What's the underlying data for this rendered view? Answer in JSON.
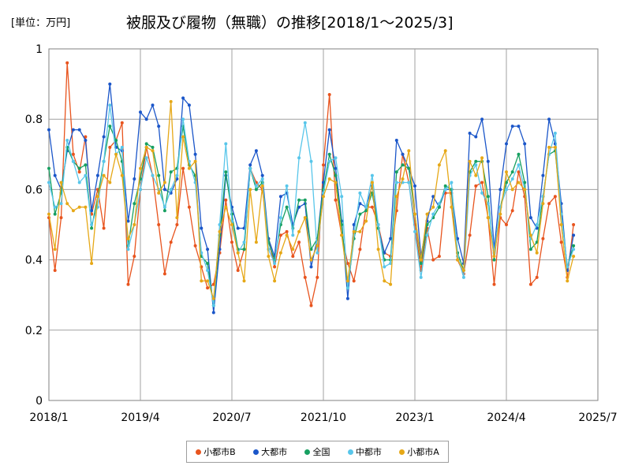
{
  "unit_label": "[単位：万円]",
  "chart_data": {
    "type": "line",
    "title": "被服及び履物（無職）の推移[2018/1～2025/3]",
    "ylim": [
      0,
      1
    ],
    "yticks": [
      "0",
      "0.2",
      "0.4",
      "0.6",
      "0.8",
      "1"
    ],
    "xticks": [
      "2018/1",
      "2019/4",
      "2020/7",
      "2021/10",
      "2023/1",
      "2024/4",
      "2025/7"
    ],
    "grid": true,
    "legend_position": "bottom",
    "series": [
      {
        "name": "小都市B",
        "color": "#e8541e",
        "values": [
          0.52,
          0.37,
          0.52,
          0.96,
          0.7,
          0.65,
          0.75,
          0.53,
          0.6,
          0.49,
          0.72,
          0.74,
          0.79,
          0.33,
          0.41,
          0.6,
          0.72,
          0.64,
          0.5,
          0.36,
          0.45,
          0.5,
          0.66,
          0.55,
          0.44,
          0.38,
          0.32,
          0.33,
          0.42,
          0.57,
          0.45,
          0.37,
          0.43,
          0.66,
          0.62,
          0.6,
          0.46,
          0.38,
          0.47,
          0.48,
          0.41,
          0.45,
          0.35,
          0.27,
          0.35,
          0.67,
          0.87,
          0.57,
          0.47,
          0.39,
          0.34,
          0.43,
          0.55,
          0.55,
          0.5,
          0.42,
          0.41,
          0.54,
          0.7,
          0.62,
          0.5,
          0.37,
          0.49,
          0.4,
          0.41,
          0.59,
          0.59,
          0.4,
          0.36,
          0.47,
          0.61,
          0.62,
          0.52,
          0.33,
          0.52,
          0.5,
          0.54,
          0.65,
          0.58,
          0.33,
          0.35,
          0.46,
          0.56,
          0.58,
          0.45,
          0.35,
          0.5
        ]
      },
      {
        "name": "大都市",
        "color": "#1b56c9",
        "values": [
          0.77,
          0.64,
          0.6,
          0.71,
          0.77,
          0.77,
          0.74,
          0.54,
          0.64,
          0.75,
          0.9,
          0.72,
          0.71,
          0.51,
          0.63,
          0.82,
          0.8,
          0.84,
          0.78,
          0.6,
          0.59,
          0.63,
          0.86,
          0.84,
          0.7,
          0.49,
          0.43,
          0.25,
          0.43,
          0.64,
          0.55,
          0.49,
          0.49,
          0.67,
          0.71,
          0.64,
          0.46,
          0.41,
          0.58,
          0.59,
          0.5,
          0.55,
          0.56,
          0.38,
          0.46,
          0.62,
          0.77,
          0.66,
          0.51,
          0.29,
          0.5,
          0.56,
          0.55,
          0.61,
          0.49,
          0.42,
          0.46,
          0.74,
          0.7,
          0.66,
          0.61,
          0.41,
          0.51,
          0.58,
          0.55,
          0.6,
          0.6,
          0.46,
          0.39,
          0.76,
          0.75,
          0.8,
          0.68,
          0.43,
          0.6,
          0.73,
          0.78,
          0.78,
          0.73,
          0.52,
          0.49,
          0.64,
          0.8,
          0.73,
          0.56,
          0.37,
          0.47
        ]
      },
      {
        "name": "全国",
        "color": "#17a061",
        "values": [
          0.66,
          0.53,
          0.59,
          0.72,
          0.68,
          0.66,
          0.67,
          0.49,
          0.58,
          0.68,
          0.78,
          0.74,
          0.68,
          0.44,
          0.56,
          0.63,
          0.73,
          0.72,
          0.64,
          0.54,
          0.65,
          0.66,
          0.78,
          0.67,
          0.64,
          0.41,
          0.39,
          0.27,
          0.47,
          0.65,
          0.53,
          0.43,
          0.43,
          0.66,
          0.6,
          0.62,
          0.45,
          0.4,
          0.5,
          0.55,
          0.49,
          0.57,
          0.57,
          0.43,
          0.46,
          0.6,
          0.7,
          0.64,
          0.5,
          0.32,
          0.46,
          0.53,
          0.54,
          0.59,
          0.49,
          0.4,
          0.4,
          0.65,
          0.67,
          0.66,
          0.53,
          0.39,
          0.5,
          0.52,
          0.55,
          0.61,
          0.6,
          0.42,
          0.37,
          0.65,
          0.68,
          0.68,
          0.58,
          0.4,
          0.55,
          0.62,
          0.65,
          0.7,
          0.62,
          0.43,
          0.45,
          0.58,
          0.7,
          0.71,
          0.53,
          0.38,
          0.44
        ]
      },
      {
        "name": "中都市",
        "color": "#58c6ea",
        "values": [
          0.62,
          0.55,
          0.56,
          0.74,
          0.68,
          0.62,
          0.64,
          0.5,
          0.55,
          0.68,
          0.84,
          0.7,
          0.72,
          0.43,
          0.5,
          0.6,
          0.69,
          0.64,
          0.6,
          0.55,
          0.6,
          0.64,
          0.8,
          0.68,
          0.62,
          0.42,
          0.37,
          0.27,
          0.5,
          0.73,
          0.51,
          0.42,
          0.45,
          0.66,
          0.61,
          0.63,
          0.43,
          0.39,
          0.52,
          0.61,
          0.47,
          0.69,
          0.79,
          0.68,
          0.42,
          0.59,
          0.68,
          0.69,
          0.58,
          0.32,
          0.47,
          0.59,
          0.55,
          0.64,
          0.5,
          0.38,
          0.39,
          0.62,
          0.62,
          0.62,
          0.48,
          0.35,
          0.47,
          0.53,
          0.56,
          0.6,
          0.62,
          0.41,
          0.35,
          0.64,
          0.67,
          0.59,
          0.56,
          0.42,
          0.55,
          0.6,
          0.63,
          0.67,
          0.6,
          0.46,
          0.5,
          0.58,
          0.7,
          0.76,
          0.53,
          0.38,
          0.43
        ]
      },
      {
        "name": "小都市A",
        "color": "#e6a817",
        "values": [
          0.53,
          0.43,
          0.62,
          0.56,
          0.54,
          0.55,
          0.55,
          0.39,
          0.58,
          0.64,
          0.62,
          0.7,
          0.64,
          0.46,
          0.5,
          0.66,
          0.72,
          0.71,
          0.59,
          0.62,
          0.85,
          0.52,
          0.75,
          0.66,
          0.68,
          0.34,
          0.34,
          0.29,
          0.48,
          0.55,
          0.5,
          0.42,
          0.34,
          0.6,
          0.45,
          0.61,
          0.41,
          0.34,
          0.42,
          0.47,
          0.43,
          0.48,
          0.52,
          0.4,
          0.44,
          0.58,
          0.63,
          0.62,
          0.47,
          0.34,
          0.48,
          0.48,
          0.51,
          0.62,
          0.43,
          0.34,
          0.33,
          0.58,
          0.63,
          0.71,
          0.53,
          0.4,
          0.53,
          0.55,
          0.67,
          0.71,
          0.55,
          0.4,
          0.37,
          0.68,
          0.64,
          0.69,
          0.52,
          0.41,
          0.53,
          0.65,
          0.6,
          0.62,
          0.6,
          0.47,
          0.42,
          0.56,
          0.72,
          0.72,
          0.5,
          0.34,
          0.41
        ]
      }
    ]
  }
}
